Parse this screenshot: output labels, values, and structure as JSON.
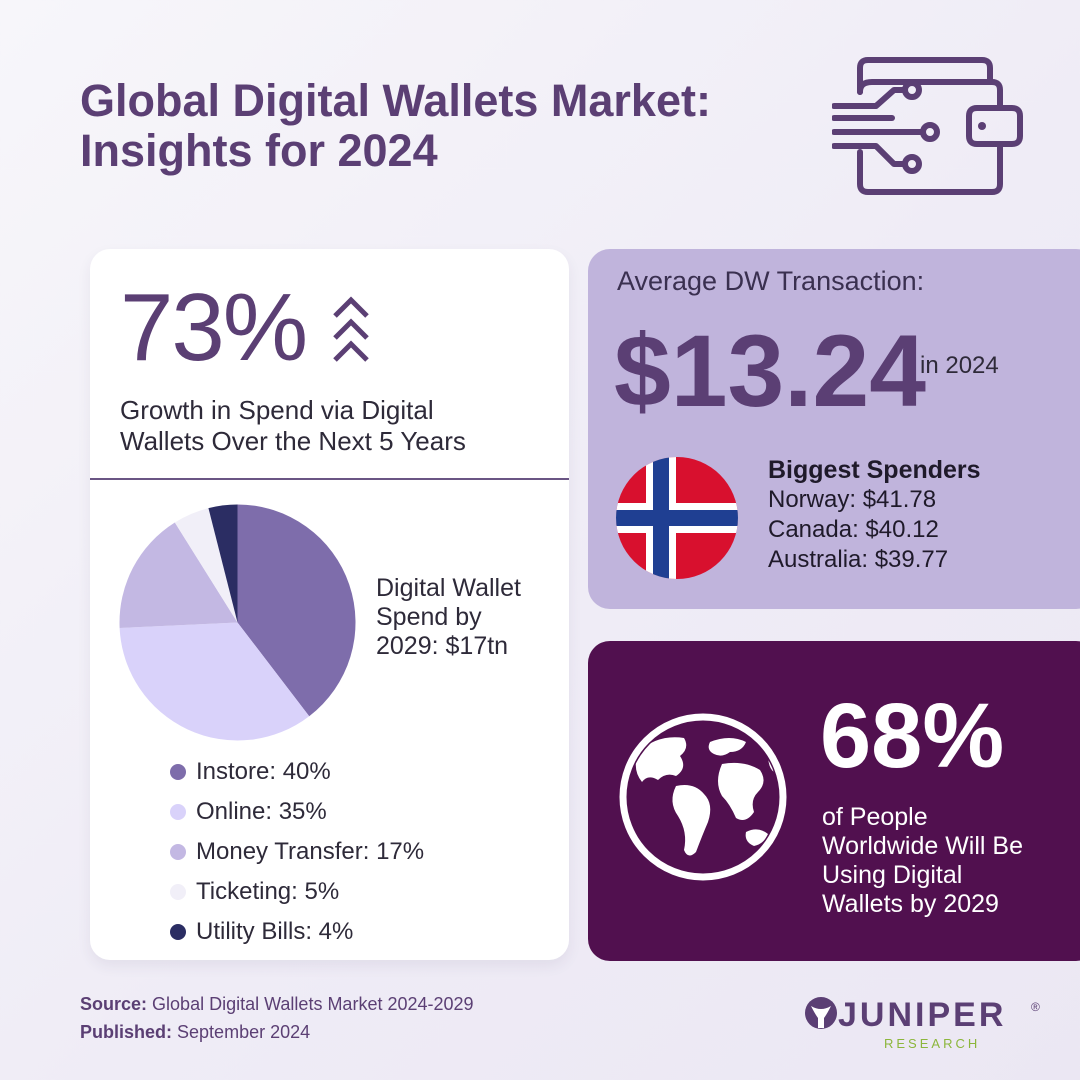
{
  "header": {
    "title_line1": "Global Digital Wallets Market:",
    "title_line2": "Insights for 2024",
    "icon": "digital-wallet-icon"
  },
  "growth": {
    "value": "73%",
    "icon": "triple-chevron-up-icon",
    "text_line1": "Growth in Spend via Digital",
    "text_line2": "Wallets Over the Next 5 Years"
  },
  "spend": {
    "line1": "Digital Wallet",
    "line2": "Spend by",
    "line3": "2029: $17tn"
  },
  "chart_data": {
    "type": "pie",
    "categories": [
      "Instore",
      "Online",
      "Money Transfer",
      "Ticketing",
      "Utility Bills"
    ],
    "values": [
      40,
      35,
      17,
      5,
      4
    ],
    "colors": [
      "#7e6dab",
      "#d9d2fa",
      "#c3b8e3",
      "#f1eff8",
      "#2b2d63"
    ],
    "legend_labels": [
      "Instore: 40%",
      "Online: 35%",
      "Money Transfer: 17%",
      "Ticketing: 5%",
      "Utility Bills: 4%"
    ],
    "legend_position": "bottom"
  },
  "average": {
    "label": "Average DW Transaction:",
    "value": "$13.24",
    "year": "in 2024",
    "flag_icon": "norway-flag-icon"
  },
  "spenders": {
    "heading": "Biggest Spenders",
    "rows": [
      "Norway: $41.78",
      "Canada: $40.12",
      "Australia: $39.77"
    ]
  },
  "people": {
    "value": "68%",
    "icon": "globe-icon",
    "line1": "of People",
    "line2": "Worldwide Will Be",
    "line3": "Using Digital",
    "line4": "Wallets by 2029"
  },
  "footer": {
    "source_label": "Source:",
    "source_text": "Global Digital Wallets Market 2024-2029",
    "published_label": "Published:",
    "published_text": "September 2024"
  },
  "logo": {
    "word": "JUNIPER",
    "reg": "®",
    "sub": "RESEARCH"
  },
  "colors": {
    "brand_purple": "#5b3f74",
    "lavender_card": "#c0b4dc",
    "dark_purple_card": "#51104f",
    "logo_green": "#8cb63c"
  }
}
